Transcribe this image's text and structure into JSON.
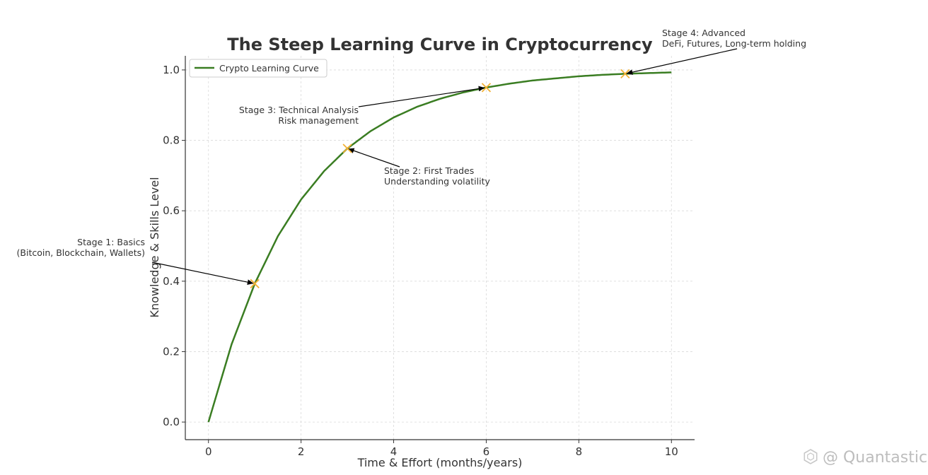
{
  "chart_data": {
    "type": "line",
    "title": "The Steep Learning Curve in Cryptocurrency",
    "xlabel": "Time & Effort (months/years)",
    "ylabel": "Knowledge & Skills Level",
    "xlim": [
      -0.5,
      10.5
    ],
    "ylim": [
      -0.05,
      1.04
    ],
    "xticks": [
      0,
      2,
      4,
      6,
      8,
      10
    ],
    "xtick_labels": [
      "0",
      "2",
      "4",
      "6",
      "8",
      "10"
    ],
    "yticks": [
      0.0,
      0.2,
      0.4,
      0.6,
      0.8,
      1.0
    ],
    "ytick_labels": [
      "0.0",
      "0.2",
      "0.4",
      "0.6",
      "0.8",
      "1.0"
    ],
    "grid": true,
    "legend_position": "upper-left",
    "colors": {
      "curve": "#3a7d22",
      "marker": "#f2b134",
      "arrow": "#000000",
      "grid": "#d9d9d9"
    },
    "series": [
      {
        "name": "Crypto Learning Curve",
        "x": [
          0,
          0.5,
          1,
          1.5,
          2,
          2.5,
          3,
          3.5,
          4,
          4.5,
          5,
          5.5,
          6,
          6.5,
          7,
          7.5,
          8,
          8.5,
          9,
          9.5,
          10
        ],
        "y": [
          0,
          0.221,
          0.393,
          0.528,
          0.632,
          0.713,
          0.777,
          0.826,
          0.865,
          0.895,
          0.918,
          0.936,
          0.95,
          0.961,
          0.97,
          0.976,
          0.982,
          0.986,
          0.989,
          0.991,
          0.993
        ]
      }
    ],
    "milestones": [
      {
        "x": 1,
        "y": 0.393,
        "lines": [
          "Stage 1: Basics",
          "(Bitcoin, Blockchain, Wallets)"
        ]
      },
      {
        "x": 3,
        "y": 0.777,
        "lines": [
          "Stage 2: First Trades",
          "Understanding volatility"
        ]
      },
      {
        "x": 6,
        "y": 0.95,
        "lines": [
          "Stage 3: Technical Analysis",
          "Risk management"
        ]
      },
      {
        "x": 9,
        "y": 0.989,
        "lines": [
          "Stage 4: Advanced",
          "DeFi, Futures, Long-term holding"
        ]
      }
    ]
  },
  "watermark": {
    "text": "@ Quantastic",
    "icon": "hexagon-logo-icon"
  }
}
